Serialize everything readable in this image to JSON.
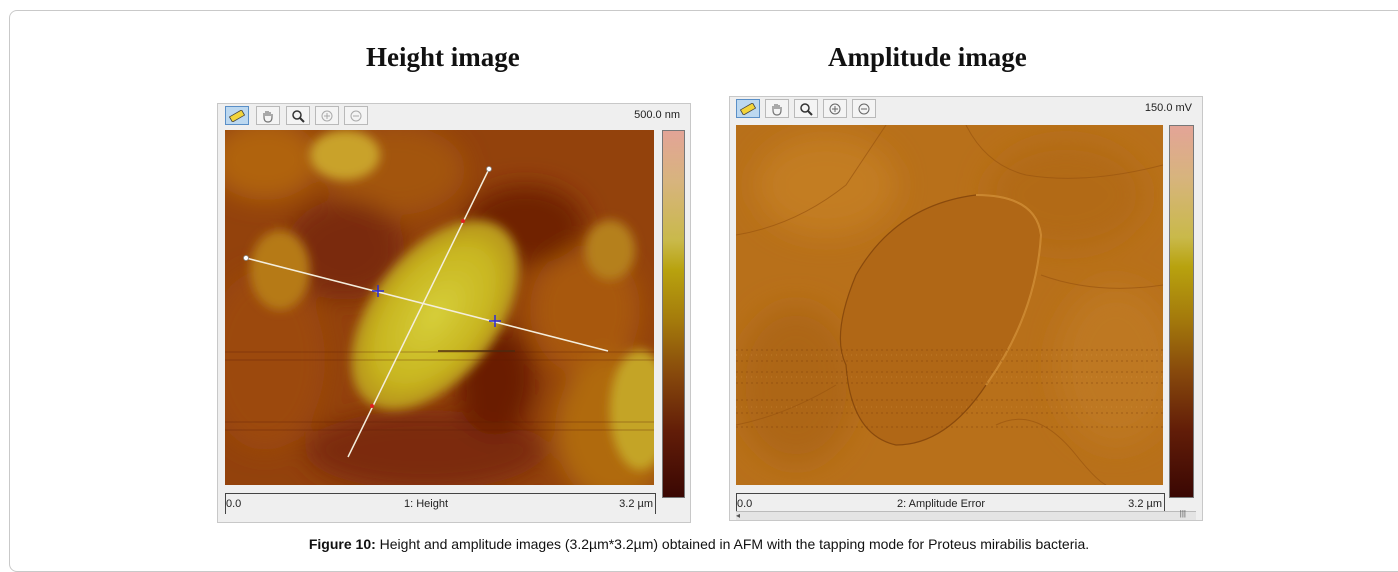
{
  "panels": {
    "height": {
      "title": "Height image",
      "scale_label": "500.0 nm",
      "axis_start": "0.0",
      "axis_name": "1: Height",
      "axis_end": "3.2 µm"
    },
    "amplitude": {
      "title": "Amplitude image",
      "scale_label": "150.0 mV",
      "axis_start": "0.0",
      "axis_name": "2: Amplitude Error",
      "axis_end": "3.2 µm",
      "scroll_marker": "|||"
    }
  },
  "toolbar_icons": [
    "ruler-icon",
    "hand-icon",
    "magnifier-icon",
    "zoom-in-icon",
    "zoom-out-icon"
  ],
  "caption": {
    "label": "Figure 10:",
    "text": "Height and amplitude images (3.2µm*3.2µm) obtained in AFM with the tapping mode for Proteus mirabilis bacteria."
  }
}
